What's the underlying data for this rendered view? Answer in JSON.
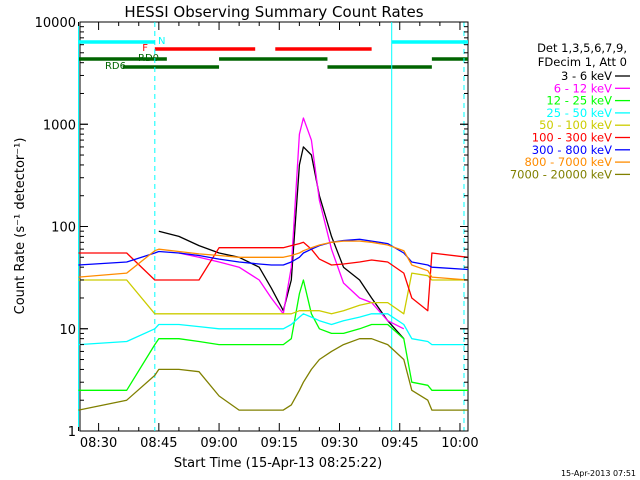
{
  "chart_data": {
    "type": "line",
    "title": "HESSI Observing Summary Count Rates",
    "xlabel": "Start Time (15-Apr-13 08:25:22)",
    "ylabel": "Count Rate (s⁻¹ detector⁻¹)",
    "y_scale": "log",
    "ylim": [
      1,
      10000
    ],
    "xlim": [
      "08:25:22",
      "10:02"
    ],
    "x_ticks": [
      "08:30",
      "08:45",
      "09:00",
      "09:15",
      "09:30",
      "09:45",
      "10:00"
    ],
    "y_ticks": [
      "1",
      "10",
      "100",
      "1000",
      "10000"
    ],
    "grid": false,
    "legend_position": "right",
    "legend_header": [
      "Det 1,3,5,6,7,9,",
      "FDecim 1, Att 0"
    ],
    "footer": "15-Apr-2013 07:51",
    "flags": [
      {
        "label": "N",
        "color": "#00ffff",
        "segments": [
          [
            "08:25",
            "08:44"
          ],
          [
            "09:43",
            "10:02"
          ]
        ]
      },
      {
        "label": "F",
        "color": "#ff0000",
        "segments": [
          [
            "08:44",
            "09:09"
          ],
          [
            "09:14",
            "09:38"
          ]
        ]
      },
      {
        "label": "RD0",
        "color": "#006400",
        "segments": [
          [
            "08:25",
            "08:47"
          ],
          [
            "09:00",
            "09:27"
          ],
          [
            "09:53",
            "10:02"
          ]
        ]
      },
      {
        "label": "RD6",
        "color": "#006400",
        "segments": [
          [
            "08:36",
            "09:00"
          ],
          [
            "09:27",
            "09:53"
          ]
        ]
      }
    ],
    "vertical_markers": [
      {
        "time": "08:25",
        "color": "#00ffff",
        "style": "solid"
      },
      {
        "time": "08:44",
        "color": "#00ffff",
        "style": "dashed"
      },
      {
        "time": "09:43",
        "color": "#00ffff",
        "style": "solid"
      },
      {
        "time": "10:01",
        "color": "#00ffff",
        "style": "dashed"
      }
    ],
    "series": [
      {
        "name": "3 - 6 keV",
        "color": "#000000",
        "x": [
          "08:25",
          "08:37",
          "08:44",
          "08:45",
          "08:50",
          "08:55",
          "09:00",
          "09:05",
          "09:10",
          "09:13",
          "09:16",
          "09:18",
          "09:20",
          "09:21",
          "09:23",
          "09:25",
          "09:28",
          "09:31",
          "09:35",
          "09:38",
          "09:42",
          "09:46",
          "09:48",
          "09:52",
          "09:53",
          "10:02"
        ],
        "y": [
          null,
          null,
          null,
          90,
          80,
          65,
          55,
          50,
          40,
          25,
          15,
          30,
          400,
          600,
          500,
          200,
          80,
          40,
          30,
          20,
          12,
          8,
          null,
          null,
          null,
          null
        ]
      },
      {
        "name": "6 - 12 keV",
        "color": "#ff00ff",
        "x": [
          "08:25",
          "08:37",
          "08:44",
          "08:45",
          "08:50",
          "08:55",
          "09:00",
          "09:05",
          "09:10",
          "09:13",
          "09:16",
          "09:18",
          "09:20",
          "09:21",
          "09:23",
          "09:25",
          "09:28",
          "09:31",
          "09:35",
          "09:38",
          "09:42",
          "09:46",
          "09:48",
          "09:52",
          "09:53",
          "10:02"
        ],
        "y": [
          null,
          null,
          null,
          null,
          55,
          50,
          45,
          40,
          30,
          20,
          14,
          40,
          800,
          1150,
          700,
          180,
          60,
          28,
          20,
          18,
          12,
          10,
          null,
          null,
          null,
          null
        ]
      },
      {
        "name": "12 - 25 keV",
        "color": "#00ff00",
        "x": [
          "08:25",
          "08:37",
          "08:44",
          "08:45",
          "08:50",
          "08:55",
          "09:00",
          "09:05",
          "09:10",
          "09:13",
          "09:16",
          "09:18",
          "09:20",
          "09:21",
          "09:23",
          "09:25",
          "09:28",
          "09:31",
          "09:35",
          "09:38",
          "09:42",
          "09:46",
          "09:48",
          "09:52",
          "09:53",
          "10:02"
        ],
        "y": [
          2.5,
          2.5,
          7,
          8,
          8,
          7.5,
          7,
          7,
          7,
          7,
          7,
          8,
          22,
          30,
          14,
          10,
          9,
          9,
          10,
          11,
          11,
          8,
          3,
          2.8,
          2.5,
          2.5
        ]
      },
      {
        "name": "25 - 50 keV",
        "color": "#00ffff",
        "x": [
          "08:25",
          "08:37",
          "08:44",
          "08:45",
          "08:50",
          "08:55",
          "09:00",
          "09:05",
          "09:10",
          "09:13",
          "09:16",
          "09:18",
          "09:20",
          "09:21",
          "09:23",
          "09:25",
          "09:28",
          "09:31",
          "09:35",
          "09:38",
          "09:42",
          "09:46",
          "09:48",
          "09:52",
          "09:53",
          "10:02"
        ],
        "y": [
          7,
          7.5,
          10,
          11,
          11,
          10.5,
          10,
          10,
          10,
          10,
          10,
          11,
          13,
          14,
          13,
          12,
          11,
          12,
          13,
          14,
          14,
          11,
          8,
          7.5,
          7,
          7
        ]
      },
      {
        "name": "50 - 100 keV",
        "color": "#cccc00",
        "x": [
          "08:25",
          "08:37",
          "08:44",
          "08:45",
          "08:50",
          "08:55",
          "09:00",
          "09:05",
          "09:10",
          "09:13",
          "09:16",
          "09:18",
          "09:20",
          "09:21",
          "09:23",
          "09:25",
          "09:28",
          "09:31",
          "09:35",
          "09:38",
          "09:42",
          "09:46",
          "09:48",
          "09:52",
          "09:53",
          "10:02"
        ],
        "y": [
          30,
          30,
          14,
          14,
          14,
          14,
          14,
          14,
          14,
          14,
          14,
          14,
          15,
          15,
          15,
          15,
          14,
          15,
          17,
          18,
          18,
          14,
          35,
          33,
          30,
          30
        ]
      },
      {
        "name": "100 - 300 keV",
        "color": "#ff0000",
        "x": [
          "08:25",
          "08:37",
          "08:44",
          "08:45",
          "08:50",
          "08:55",
          "09:00",
          "09:05",
          "09:10",
          "09:13",
          "09:16",
          "09:18",
          "09:20",
          "09:21",
          "09:23",
          "09:25",
          "09:28",
          "09:31",
          "09:35",
          "09:38",
          "09:42",
          "09:46",
          "09:48",
          "09:52",
          "09:53",
          "10:02"
        ],
        "y": [
          55,
          55,
          30,
          30,
          30,
          30,
          62,
          62,
          62,
          62,
          62,
          65,
          68,
          70,
          60,
          48,
          42,
          43,
          45,
          47,
          45,
          35,
          20,
          15,
          55,
          50
        ]
      },
      {
        "name": "300 - 800 keV",
        "color": "#0000ff",
        "x": [
          "08:25",
          "08:37",
          "08:44",
          "08:45",
          "08:50",
          "08:55",
          "09:00",
          "09:05",
          "09:10",
          "09:13",
          "09:16",
          "09:18",
          "09:20",
          "09:21",
          "09:23",
          "09:25",
          "09:28",
          "09:31",
          "09:35",
          "09:38",
          "09:42",
          "09:46",
          "09:48",
          "09:52",
          "09:53",
          "10:02"
        ],
        "y": [
          42,
          45,
          55,
          57,
          55,
          52,
          48,
          45,
          43,
          42,
          42,
          45,
          50,
          55,
          60,
          65,
          70,
          73,
          75,
          72,
          68,
          55,
          45,
          42,
          40,
          38
        ]
      },
      {
        "name": "800 - 7000 keV",
        "color": "#ff8c00",
        "x": [
          "08:25",
          "08:37",
          "08:44",
          "08:45",
          "08:50",
          "08:55",
          "09:00",
          "09:05",
          "09:10",
          "09:13",
          "09:16",
          "09:18",
          "09:20",
          "09:21",
          "09:23",
          "09:25",
          "09:28",
          "09:31",
          "09:35",
          "09:38",
          "09:42",
          "09:46",
          "09:48",
          "09:52",
          "09:53",
          "10:02"
        ],
        "y": [
          32,
          35,
          58,
          60,
          57,
          54,
          52,
          50,
          50,
          50,
          50,
          52,
          55,
          58,
          62,
          66,
          70,
          72,
          72,
          70,
          66,
          58,
          42,
          37,
          32,
          30
        ]
      },
      {
        "name": "7000 - 20000 keV",
        "color": "#808000",
        "x": [
          "08:25",
          "08:37",
          "08:44",
          "08:45",
          "08:50",
          "08:55",
          "09:00",
          "09:05",
          "09:10",
          "09:13",
          "09:16",
          "09:18",
          "09:20",
          "09:21",
          "09:23",
          "09:25",
          "09:28",
          "09:31",
          "09:35",
          "09:38",
          "09:42",
          "09:46",
          "09:48",
          "09:52",
          "09:53",
          "10:02"
        ],
        "y": [
          1.6,
          2,
          3.5,
          4,
          4,
          3.8,
          2.2,
          1.6,
          1.6,
          1.6,
          1.6,
          1.8,
          2.5,
          3,
          4,
          5,
          6,
          7,
          8,
          8,
          7,
          5,
          2.5,
          2,
          1.6,
          1.6
        ]
      }
    ]
  }
}
